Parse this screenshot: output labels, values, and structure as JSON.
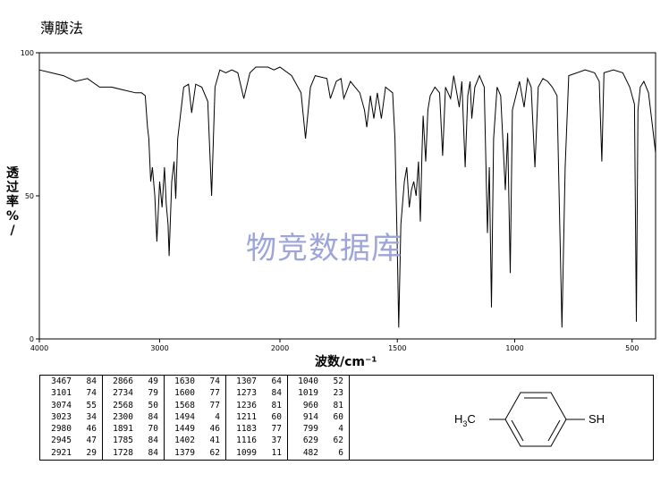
{
  "title": "薄膜法",
  "watermark": "物竞数据库",
  "chart_data": {
    "type": "line",
    "title": "薄膜法",
    "xlabel": "波数/cm⁻¹",
    "ylabel": "透过率 %/",
    "xlim": [
      4000,
      400
    ],
    "ylim": [
      0,
      100
    ],
    "x_ticks": [
      "4000",
      "3000",
      "2000",
      "1500",
      "1000",
      "500"
    ],
    "y_ticks": [
      "100",
      "50",
      "0"
    ],
    "series": [
      {
        "points": [
          [
            4000,
            94
          ],
          [
            3900,
            93
          ],
          [
            3800,
            92
          ],
          [
            3700,
            90
          ],
          [
            3600,
            91
          ],
          [
            3500,
            88
          ],
          [
            3400,
            88
          ],
          [
            3300,
            87
          ],
          [
            3200,
            86
          ],
          [
            3150,
            86
          ],
          [
            3120,
            85
          ],
          [
            3101,
            74
          ],
          [
            3090,
            70
          ],
          [
            3074,
            55
          ],
          [
            3060,
            60
          ],
          [
            3040,
            50
          ],
          [
            3023,
            34
          ],
          [
            3000,
            55
          ],
          [
            2980,
            46
          ],
          [
            2960,
            60
          ],
          [
            2945,
            47
          ],
          [
            2930,
            40
          ],
          [
            2921,
            29
          ],
          [
            2900,
            55
          ],
          [
            2880,
            62
          ],
          [
            2866,
            49
          ],
          [
            2850,
            70
          ],
          [
            2800,
            88
          ],
          [
            2760,
            89
          ],
          [
            2734,
            79
          ],
          [
            2700,
            89
          ],
          [
            2650,
            88
          ],
          [
            2600,
            83
          ],
          [
            2568,
            50
          ],
          [
            2540,
            88
          ],
          [
            2500,
            94
          ],
          [
            2450,
            93
          ],
          [
            2400,
            94
          ],
          [
            2350,
            93
          ],
          [
            2300,
            84
          ],
          [
            2250,
            93
          ],
          [
            2200,
            95
          ],
          [
            2100,
            95
          ],
          [
            2050,
            94
          ],
          [
            2000,
            95
          ],
          [
            1950,
            92
          ],
          [
            1910,
            86
          ],
          [
            1891,
            70
          ],
          [
            1870,
            88
          ],
          [
            1850,
            92
          ],
          [
            1800,
            91
          ],
          [
            1785,
            84
          ],
          [
            1760,
            90
          ],
          [
            1740,
            91
          ],
          [
            1728,
            84
          ],
          [
            1700,
            90
          ],
          [
            1680,
            88
          ],
          [
            1660,
            86
          ],
          [
            1640,
            80
          ],
          [
            1630,
            74
          ],
          [
            1615,
            85
          ],
          [
            1600,
            77
          ],
          [
            1585,
            86
          ],
          [
            1568,
            77
          ],
          [
            1550,
            88
          ],
          [
            1520,
            86
          ],
          [
            1510,
            70
          ],
          [
            1500,
            30
          ],
          [
            1494,
            4
          ],
          [
            1485,
            40
          ],
          [
            1470,
            55
          ],
          [
            1460,
            60
          ],
          [
            1449,
            46
          ],
          [
            1440,
            52
          ],
          [
            1430,
            55
          ],
          [
            1420,
            50
          ],
          [
            1410,
            62
          ],
          [
            1402,
            41
          ],
          [
            1395,
            65
          ],
          [
            1390,
            78
          ],
          [
            1379,
            62
          ],
          [
            1370,
            80
          ],
          [
            1360,
            85
          ],
          [
            1340,
            88
          ],
          [
            1320,
            86
          ],
          [
            1307,
            64
          ],
          [
            1295,
            88
          ],
          [
            1273,
            84
          ],
          [
            1260,
            92
          ],
          [
            1236,
            81
          ],
          [
            1225,
            90
          ],
          [
            1211,
            60
          ],
          [
            1200,
            85
          ],
          [
            1190,
            90
          ],
          [
            1183,
            77
          ],
          [
            1170,
            88
          ],
          [
            1150,
            92
          ],
          [
            1130,
            88
          ],
          [
            1116,
            37
          ],
          [
            1108,
            60
          ],
          [
            1099,
            11
          ],
          [
            1090,
            70
          ],
          [
            1075,
            88
          ],
          [
            1060,
            85
          ],
          [
            1040,
            52
          ],
          [
            1030,
            72
          ],
          [
            1019,
            23
          ],
          [
            1010,
            80
          ],
          [
            980,
            90
          ],
          [
            960,
            81
          ],
          [
            945,
            91
          ],
          [
            930,
            88
          ],
          [
            914,
            60
          ],
          [
            900,
            88
          ],
          [
            880,
            91
          ],
          [
            860,
            90
          ],
          [
            840,
            88
          ],
          [
            820,
            85
          ],
          [
            799,
            4
          ],
          [
            785,
            60
          ],
          [
            770,
            92
          ],
          [
            700,
            94
          ],
          [
            660,
            93
          ],
          [
            640,
            90
          ],
          [
            629,
            62
          ],
          [
            620,
            93
          ],
          [
            580,
            94
          ],
          [
            540,
            93
          ],
          [
            510,
            88
          ],
          [
            490,
            82
          ],
          [
            482,
            6
          ],
          [
            475,
            80
          ],
          [
            465,
            88
          ],
          [
            450,
            90
          ],
          [
            430,
            86
          ],
          [
            410,
            72
          ],
          [
            400,
            65
          ]
        ]
      }
    ],
    "peak_table": [
      [
        [
          "3467",
          "84"
        ],
        [
          "3101",
          "74"
        ],
        [
          "3074",
          "55"
        ],
        [
          "3023",
          "34"
        ],
        [
          "2980",
          "46"
        ],
        [
          "2945",
          "47"
        ],
        [
          "2921",
          "29"
        ]
      ],
      [
        [
          "2866",
          "49"
        ],
        [
          "2734",
          "79"
        ],
        [
          "2568",
          "50"
        ],
        [
          "2300",
          "84"
        ],
        [
          "1891",
          "70"
        ],
        [
          "1785",
          "84"
        ],
        [
          "1728",
          "84"
        ]
      ],
      [
        [
          "1630",
          "74"
        ],
        [
          "1600",
          "77"
        ],
        [
          "1568",
          "77"
        ],
        [
          "1494",
          "4"
        ],
        [
          "1449",
          "46"
        ],
        [
          "1402",
          "41"
        ],
        [
          "1379",
          "62"
        ]
      ],
      [
        [
          "1307",
          "64"
        ],
        [
          "1273",
          "84"
        ],
        [
          "1236",
          "81"
        ],
        [
          "1211",
          "60"
        ],
        [
          "1183",
          "77"
        ],
        [
          "1116",
          "37"
        ],
        [
          "1099",
          "11"
        ]
      ],
      [
        [
          "1040",
          "52"
        ],
        [
          "1019",
          "23"
        ],
        [
          "960",
          "81"
        ],
        [
          "914",
          "60"
        ],
        [
          "799",
          "4"
        ],
        [
          "629",
          "62"
        ],
        [
          "482",
          "6"
        ]
      ]
    ]
  },
  "structure": {
    "left_group": "H₃C",
    "left_group_main": "H",
    "left_group_sub": "3",
    "left_group_tail": "C",
    "right_group": "SH"
  }
}
